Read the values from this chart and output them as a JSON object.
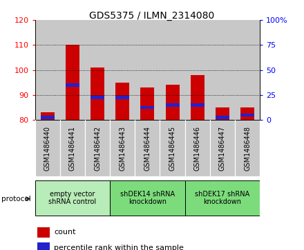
{
  "title": "GDS5375 / ILMN_2314080",
  "samples": [
    "GSM1486440",
    "GSM1486441",
    "GSM1486442",
    "GSM1486443",
    "GSM1486444",
    "GSM1486445",
    "GSM1486446",
    "GSM1486447",
    "GSM1486448"
  ],
  "count_values": [
    83,
    110,
    101,
    95,
    93,
    94,
    98,
    85,
    85
  ],
  "percentile_values": [
    81,
    94,
    89,
    89,
    85,
    86,
    86,
    81,
    82
  ],
  "ymin": 80,
  "ymax": 120,
  "yticks_left": [
    80,
    90,
    100,
    110,
    120
  ],
  "yticks_right_pos": [
    80,
    90,
    100,
    110,
    120
  ],
  "yticks_right_labels": [
    "0",
    "25",
    "50",
    "75",
    "100%"
  ],
  "grid_lines": [
    90,
    100,
    110
  ],
  "groups": [
    {
      "label": "empty vector\nshRNA control",
      "start": 0,
      "end": 3,
      "color": "#b8ecb8"
    },
    {
      "label": "shDEK14 shRNA\nknockdown",
      "start": 3,
      "end": 6,
      "color": "#7cdc7c"
    },
    {
      "label": "shDEK17 shRNA\nknockdown",
      "start": 6,
      "end": 9,
      "color": "#7cdc7c"
    }
  ],
  "bar_color": "#cc0000",
  "percentile_color": "#2222cc",
  "bg_color": "#c8c8c8",
  "bar_width": 0.55,
  "protocol_label": "protocol",
  "legend_count": "count",
  "legend_percentile": "percentile rank within the sample",
  "title_fontsize": 10,
  "tick_fontsize": 8,
  "label_fontsize": 7
}
